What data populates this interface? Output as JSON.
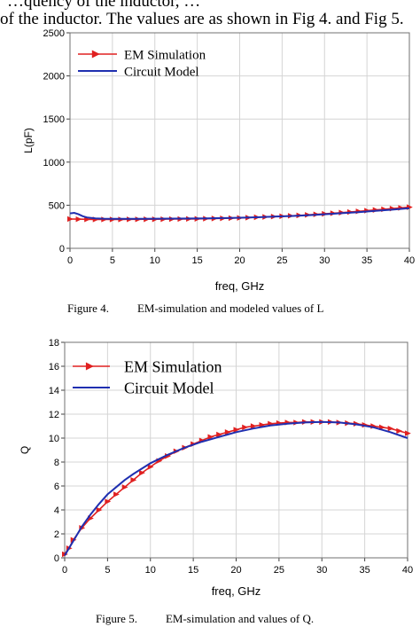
{
  "page": {
    "intro_line_1": "…quency of the inductor, … ",
    "intro_line_2": "of the inductor. The values are as shown in Fig 4. and Fig 5."
  },
  "figures": [
    {
      "caption_num": "Figure 4.",
      "caption_text": "EM-simulation and modeled values of L"
    },
    {
      "caption_num": "Figure 5.",
      "caption_text": "EM-simulation and values of Q."
    }
  ],
  "chart_data": [
    {
      "type": "line",
      "title": "",
      "xlabel": "freq, GHz",
      "ylabel": "L(pF)",
      "xlim": [
        0,
        40
      ],
      "ylim": [
        0,
        2500
      ],
      "x_ticks": [
        0,
        5,
        10,
        15,
        20,
        25,
        30,
        35,
        40
      ],
      "y_ticks": [
        0,
        500,
        1000,
        1500,
        2000,
        2500
      ],
      "grid": true,
      "legend": "top-left",
      "series": [
        {
          "name": "EM Simulation",
          "color": "#e02020",
          "marker": "triangle-right",
          "x": [
            0,
            1,
            2,
            3,
            4,
            5,
            6,
            7,
            8,
            9,
            10,
            11,
            12,
            13,
            14,
            15,
            16,
            17,
            18,
            19,
            20,
            21,
            22,
            23,
            24,
            25,
            26,
            27,
            28,
            29,
            30,
            31,
            32,
            33,
            34,
            35,
            36,
            37,
            38,
            39,
            40
          ],
          "values": [
            340,
            338,
            336,
            335,
            335,
            335,
            335,
            336,
            336,
            337,
            337,
            338,
            339,
            340,
            341,
            342,
            344,
            346,
            348,
            350,
            353,
            356,
            360,
            364,
            368,
            372,
            377,
            382,
            388,
            394,
            400,
            407,
            414,
            421,
            429,
            437,
            445,
            453,
            461,
            469,
            477
          ]
        },
        {
          "name": "Circuit  Model",
          "color": "#1f2fb0",
          "x": [
            0,
            0.5,
            1,
            1.5,
            2,
            3,
            4,
            5,
            6,
            8,
            10,
            12,
            14,
            16,
            18,
            20,
            22,
            24,
            26,
            28,
            30,
            32,
            34,
            36,
            38,
            40
          ],
          "values": [
            405,
            412,
            395,
            372,
            358,
            348,
            344,
            343,
            343,
            343,
            344,
            345,
            346,
            348,
            351,
            355,
            360,
            367,
            375,
            384,
            395,
            407,
            420,
            434,
            449,
            465
          ]
        }
      ]
    },
    {
      "type": "line",
      "title": "",
      "xlabel": "freq, GHz",
      "ylabel": "Q",
      "xlim": [
        0,
        40
      ],
      "ylim": [
        0,
        18
      ],
      "x_ticks": [
        0,
        5,
        10,
        15,
        20,
        25,
        30,
        35,
        40
      ],
      "y_ticks": [
        0,
        2,
        4,
        6,
        8,
        10,
        12,
        14,
        16,
        18
      ],
      "grid": true,
      "legend": "top-left",
      "series": [
        {
          "name": "EM Simulation",
          "color": "#e02020",
          "marker": "triangle-right",
          "x": [
            0,
            0.5,
            1,
            2,
            3,
            4,
            5,
            6,
            7,
            8,
            9,
            10,
            11,
            12,
            13,
            14,
            15,
            16,
            17,
            18,
            19,
            20,
            21,
            22,
            23,
            24,
            25,
            26,
            27,
            28,
            29,
            30,
            31,
            32,
            33,
            34,
            35,
            36,
            37,
            38,
            39,
            40
          ],
          "values": [
            0.3,
            0.8,
            1.5,
            2.5,
            3.3,
            4.0,
            4.7,
            5.3,
            5.9,
            6.5,
            7.1,
            7.6,
            8.1,
            8.5,
            8.9,
            9.2,
            9.5,
            9.8,
            10.1,
            10.3,
            10.5,
            10.7,
            10.9,
            11.0,
            11.1,
            11.2,
            11.25,
            11.3,
            11.3,
            11.35,
            11.35,
            11.35,
            11.35,
            11.3,
            11.25,
            11.2,
            11.1,
            11.0,
            10.9,
            10.8,
            10.6,
            10.4
          ]
        },
        {
          "name": "Circuit  Model",
          "color": "#1f2fb0",
          "x": [
            0,
            1,
            2,
            3,
            4,
            5,
            6,
            7,
            8,
            10,
            12,
            14,
            16,
            18,
            20,
            22,
            24,
            26,
            28,
            30,
            32,
            34,
            36,
            38,
            40
          ],
          "values": [
            0.2,
            1.4,
            2.6,
            3.6,
            4.5,
            5.3,
            5.9,
            6.5,
            7.0,
            7.9,
            8.6,
            9.2,
            9.7,
            10.1,
            10.5,
            10.8,
            11.05,
            11.2,
            11.3,
            11.35,
            11.3,
            11.15,
            10.9,
            10.5,
            10.0
          ]
        }
      ]
    }
  ]
}
